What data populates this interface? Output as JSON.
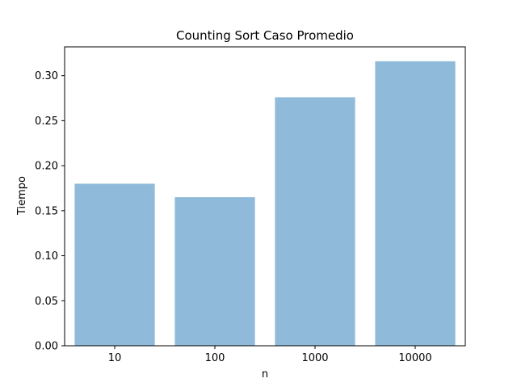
{
  "chart_data": {
    "type": "bar",
    "title": "Counting Sort Caso Promedio",
    "xlabel": "n",
    "ylabel": "Tiempo",
    "categories": [
      "10",
      "100",
      "1000",
      "10000"
    ],
    "values": [
      0.18,
      0.165,
      0.276,
      0.316
    ],
    "ylim": [
      0,
      0.332
    ],
    "yticks": [
      "0.00",
      "0.05",
      "0.10",
      "0.15",
      "0.20",
      "0.25",
      "0.30"
    ],
    "bar_color": "#8fbad9",
    "grid": false,
    "legend": "none"
  }
}
